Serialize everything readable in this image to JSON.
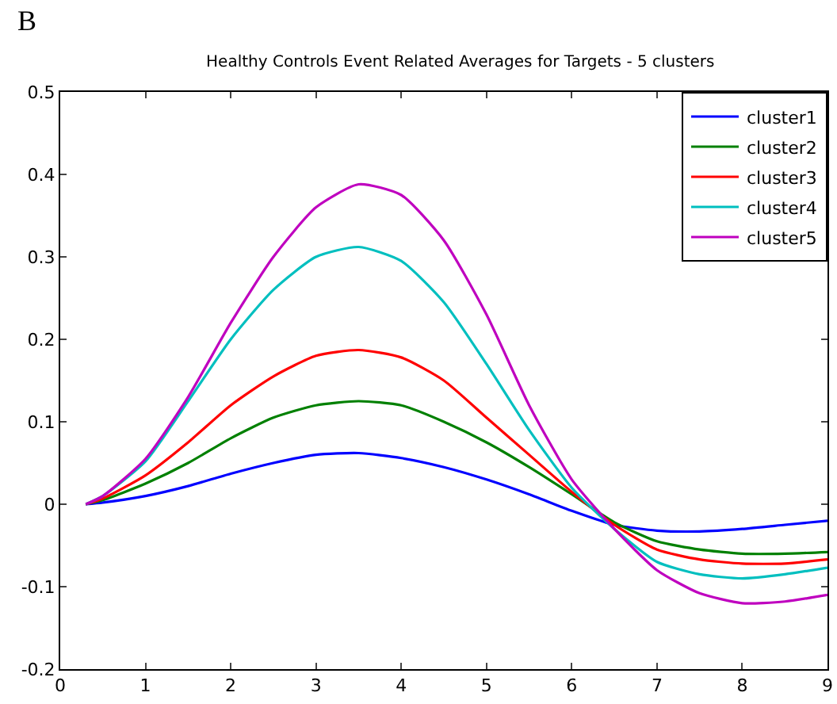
{
  "chart_data": {
    "type": "line",
    "title": "Healthy Controls Event Related Averages for Targets - 5 clusters",
    "annotations": [
      "B"
    ],
    "x": [
      0.3,
      0.5,
      1,
      1.5,
      2,
      2.5,
      3,
      3.5,
      4,
      4.5,
      5,
      5.5,
      6,
      6.5,
      7,
      7.5,
      8,
      8.5,
      9
    ],
    "series": [
      {
        "name": "cluster1",
        "color": "#0000ff",
        "values": [
          0,
          0.002,
          0.01,
          0.022,
          0.037,
          0.05,
          0.06,
          0.062,
          0.056,
          0.045,
          0.03,
          0.012,
          -0.008,
          -0.025,
          -0.032,
          -0.033,
          -0.03,
          -0.025,
          -0.02
        ]
      },
      {
        "name": "cluster2",
        "color": "#008000",
        "values": [
          0,
          0.005,
          0.025,
          0.05,
          0.08,
          0.105,
          0.12,
          0.125,
          0.12,
          0.1,
          0.075,
          0.045,
          0.012,
          -0.022,
          -0.045,
          -0.055,
          -0.06,
          -0.06,
          -0.058
        ]
      },
      {
        "name": "cluster3",
        "color": "#ff0000",
        "values": [
          0,
          0.007,
          0.035,
          0.075,
          0.12,
          0.155,
          0.18,
          0.187,
          0.178,
          0.15,
          0.105,
          0.06,
          0.015,
          -0.025,
          -0.055,
          -0.067,
          -0.072,
          -0.072,
          -0.067
        ]
      },
      {
        "name": "cluster4",
        "color": "#00bfbf",
        "values": [
          0,
          0.01,
          0.052,
          0.125,
          0.2,
          0.26,
          0.3,
          0.312,
          0.295,
          0.245,
          0.17,
          0.09,
          0.02,
          -0.03,
          -0.07,
          -0.085,
          -0.09,
          -0.085,
          -0.077
        ]
      },
      {
        "name": "cluster5",
        "color": "#bf00bf",
        "values": [
          0,
          0.01,
          0.055,
          0.13,
          0.22,
          0.3,
          0.36,
          0.388,
          0.375,
          0.32,
          0.23,
          0.12,
          0.03,
          -0.03,
          -0.08,
          -0.108,
          -0.12,
          -0.118,
          -0.11
        ]
      }
    ],
    "xlim": [
      0,
      9
    ],
    "xticks": [
      0,
      1,
      2,
      3,
      4,
      5,
      6,
      7,
      8,
      9
    ],
    "ylim": [
      -0.2,
      0.5
    ],
    "yticks": [
      -0.2,
      -0.1,
      0,
      0.1,
      0.2,
      0.3,
      0.4,
      0.5
    ],
    "grid": false,
    "legend": "top right",
    "marker": "none",
    "line_style": "solid"
  }
}
